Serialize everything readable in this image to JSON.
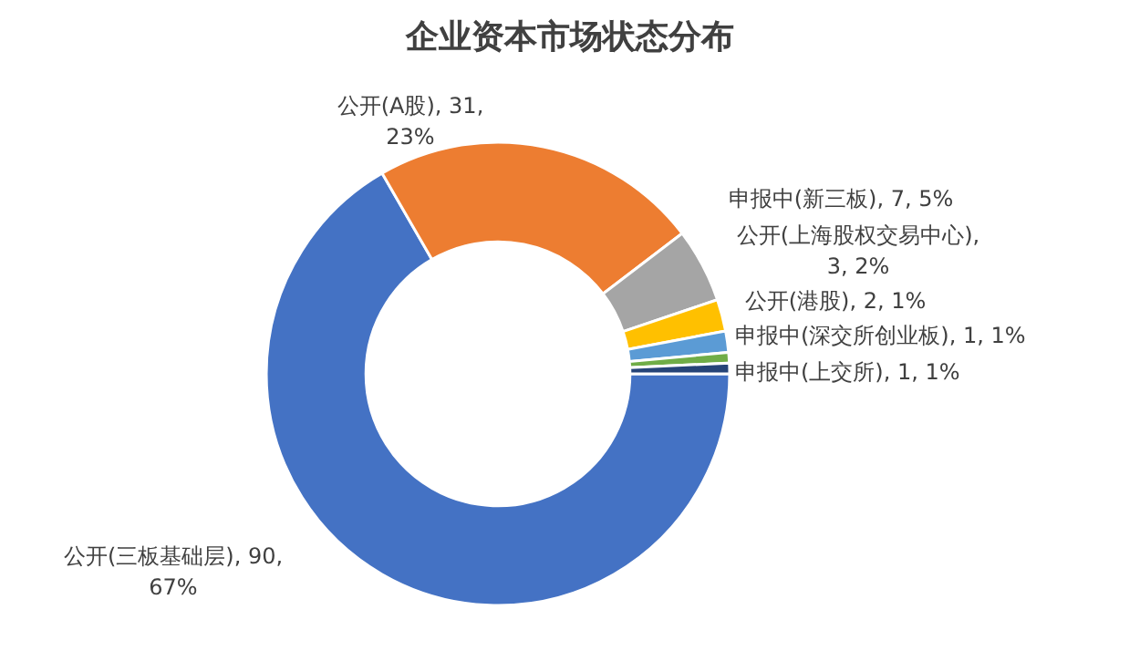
{
  "chart_data": {
    "type": "donut",
    "title": "企业资本市场状态分布",
    "categories": [
      "公开(三板基础层)",
      "公开(A股)",
      "申报中(新三板)",
      "公开(上海股权交易中心)",
      "公开(港股)",
      "申报中(深交所创业板)",
      "申报中(上交所)"
    ],
    "values": [
      90,
      31,
      7,
      3,
      2,
      1,
      1
    ],
    "colors": [
      "#4472c4",
      "#ed7d31",
      "#a5a5a5",
      "#ffc000",
      "#5b9bd5",
      "#70ad47",
      "#264478"
    ],
    "value_labels": [
      ", 90, 67%",
      ", 31, 23%",
      ", 7, 5%",
      ", 3, 2%",
      ", 2, 1%",
      ", 1, 1%",
      ", 1, 1%"
    ]
  }
}
